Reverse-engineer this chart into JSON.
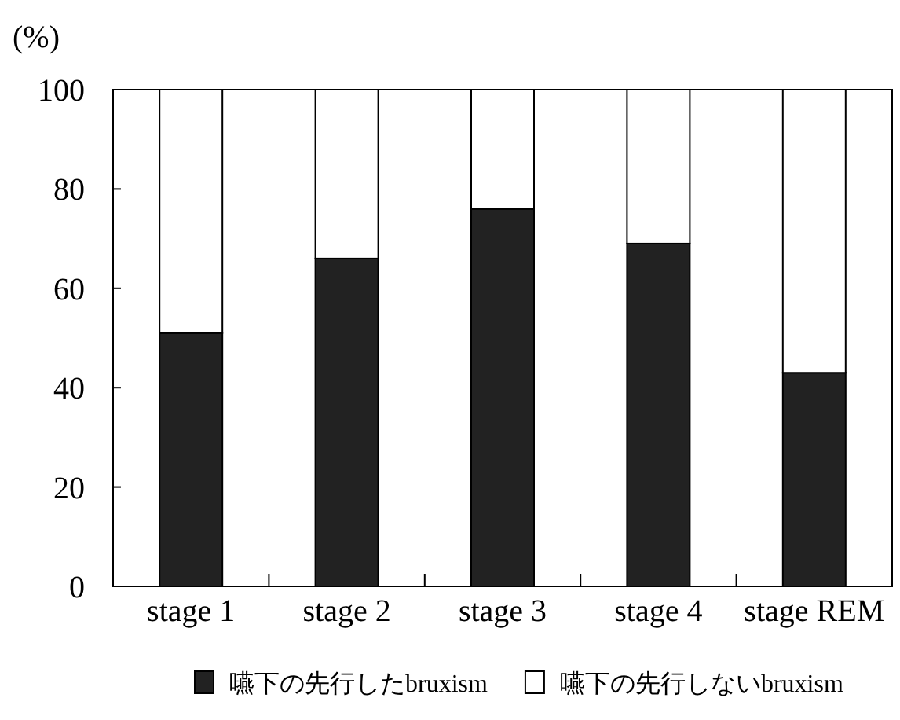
{
  "chart_data": {
    "type": "bar",
    "stacked": true,
    "ylabel": "(%)",
    "categories": [
      "stage 1",
      "stage 2",
      "stage 3",
      "stage 4",
      "stage REM"
    ],
    "series": [
      {
        "name": "嚥下の先行したbruxism",
        "color": "#222222",
        "values": [
          51,
          66,
          76,
          69,
          43
        ]
      },
      {
        "name": "嚥下の先行しないbruxism",
        "color": "#ffffff",
        "values": [
          49,
          34,
          24,
          31,
          57
        ]
      }
    ],
    "ylim": [
      0,
      100
    ],
    "yticks": [
      0,
      20,
      40,
      60,
      80,
      100
    ],
    "grid": false,
    "legend": "bottom"
  }
}
